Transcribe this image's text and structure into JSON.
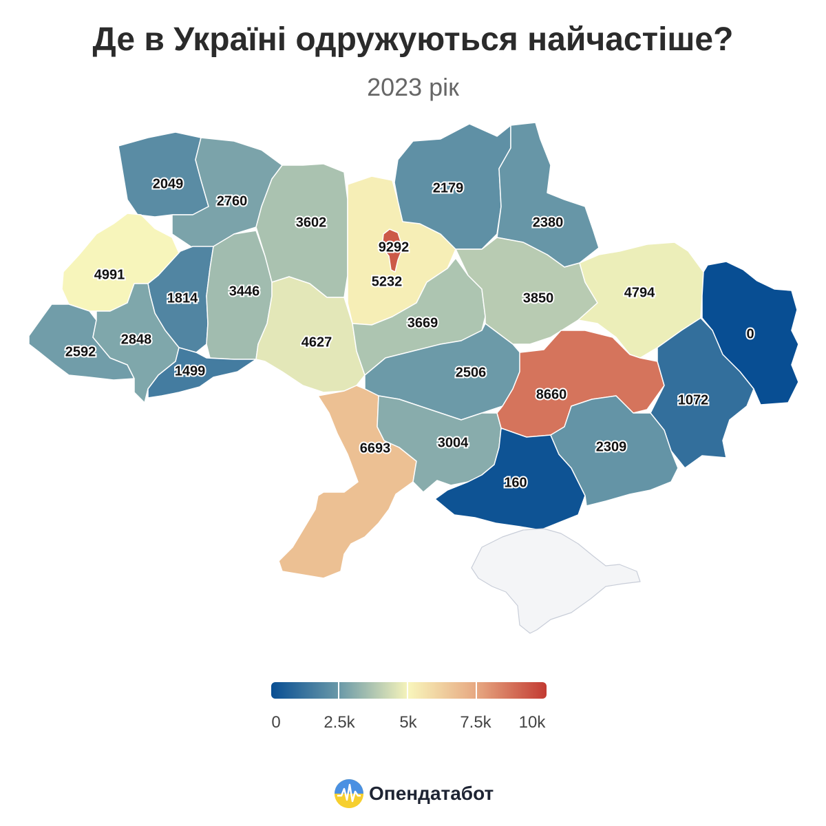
{
  "title": "Де в Україні одружуються найчастіше?",
  "subtitle": "2023 рік",
  "brand": {
    "name": "Опендатабот"
  },
  "legend": {
    "min": 0,
    "max": 10000,
    "ticks": [
      "0",
      "2.5k",
      "5k",
      "7.5k",
      "10k"
    ],
    "tick_values": [
      0,
      2500,
      5000,
      7500,
      10000
    ],
    "colors": [
      "#084e93",
      "#6c9aa8",
      "#f8f5bb",
      "#e6a680",
      "#c23a32"
    ],
    "no_data_color": "#f4f5f7"
  },
  "regions": [
    {
      "id": "volyn",
      "value": 2049
    },
    {
      "id": "rivne",
      "value": 2760
    },
    {
      "id": "zhytomyr",
      "value": 3602
    },
    {
      "id": "kyiv-oblast",
      "value": 5232
    },
    {
      "id": "kyiv-city",
      "value": 9292
    },
    {
      "id": "chernihiv",
      "value": 2179
    },
    {
      "id": "sumy",
      "value": 2380
    },
    {
      "id": "lviv",
      "value": 4991
    },
    {
      "id": "ternopil",
      "value": 1814
    },
    {
      "id": "khmelnytskyi",
      "value": 3446
    },
    {
      "id": "cherkasy",
      "value": 3669
    },
    {
      "id": "poltava",
      "value": 3850
    },
    {
      "id": "kharkiv",
      "value": 4794
    },
    {
      "id": "luhansk",
      "value": 0
    },
    {
      "id": "zakarpattia",
      "value": 2592
    },
    {
      "id": "ivano-frankivsk",
      "value": 2848
    },
    {
      "id": "chernivtsi",
      "value": 1499
    },
    {
      "id": "vinnytsia",
      "value": 4627
    },
    {
      "id": "kirovohrad",
      "value": 2506
    },
    {
      "id": "dnipropetrovsk",
      "value": 8660
    },
    {
      "id": "donetsk",
      "value": 1072
    },
    {
      "id": "odesa",
      "value": 6693
    },
    {
      "id": "mykolaiv",
      "value": 3004
    },
    {
      "id": "kherson",
      "value": 160
    },
    {
      "id": "zaporizhzhia",
      "value": 2309
    },
    {
      "id": "crimea",
      "value": null
    }
  ]
}
